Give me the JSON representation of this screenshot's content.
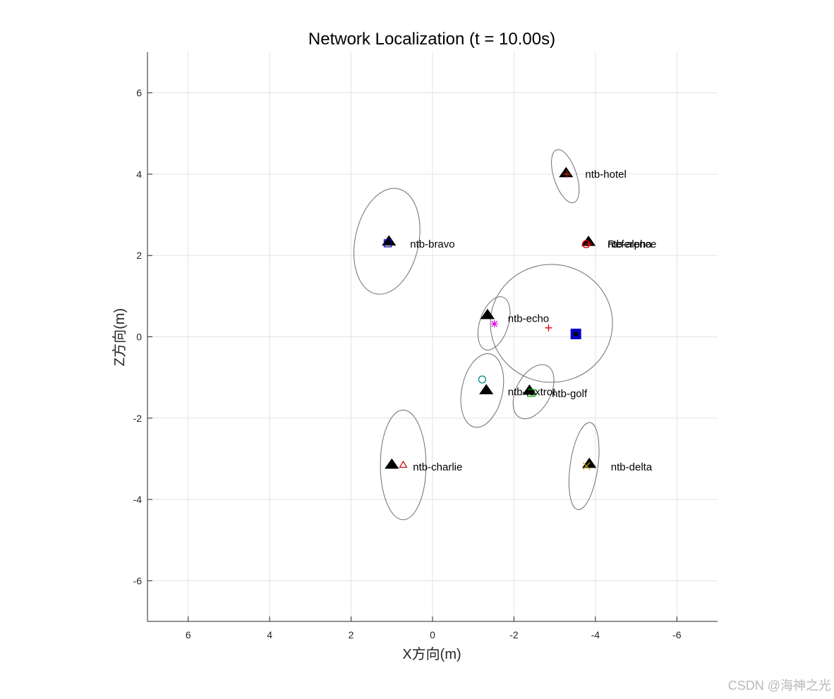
{
  "chart_data": {
    "type": "scatter",
    "title": "Network Localization (t = 10.00s)",
    "xlabel": "X方向(m)",
    "ylabel": "Z方向(m)",
    "xlim": [
      7,
      -7
    ],
    "ylim": [
      -7,
      7
    ],
    "x_reversed": true,
    "grid": true,
    "xticks": [
      6,
      4,
      2,
      0,
      -2,
      -4,
      -6
    ],
    "xtick_labels": [
      "6",
      "4",
      "2",
      "0",
      "-2",
      "-4",
      "-6"
    ],
    "yticks": [
      6,
      4,
      2,
      0,
      -2,
      -4,
      -6
    ],
    "ytick_labels": [
      "6",
      "4",
      "2",
      "0",
      "-2",
      "-4",
      "-6"
    ],
    "anchor": {
      "x": -3.52,
      "y": 0.07,
      "color": "#0000cc"
    },
    "reference_estimate": {
      "x": -2.85,
      "y": 0.22,
      "color": "#dd0000"
    },
    "large_ellipse": {
      "cx": -2.92,
      "cy": 0.33,
      "rx": 1.5,
      "ry": 1.45,
      "angle": 0
    },
    "nodes": [
      {
        "name": "ntb-hotel",
        "tx": -3.28,
        "ty": 4.02,
        "ex": -3.3,
        "ey": 4.0,
        "marker": "+",
        "color": "#cc2200",
        "ecx": -3.26,
        "ecy": 3.95,
        "erx": 0.28,
        "ery": 0.68,
        "eangle": -18,
        "label": "ntb-hotel"
      },
      {
        "name": "ntb-alpha",
        "tx": -3.83,
        "ty": 2.33,
        "ex": -3.77,
        "ey": 2.28,
        "marker": "o",
        "color": "#dd0000",
        "label": "ntb-alpha"
      },
      {
        "name": "Reference",
        "tx": -3.83,
        "ty": 2.33,
        "ex": -3.83,
        "ey": 2.28,
        "marker": "+",
        "color": "#dd0000",
        "label": "Reference"
      },
      {
        "name": "ntb-bravo",
        "tx": 1.07,
        "ty": 2.34,
        "ex": 1.1,
        "ey": 2.3,
        "marker": "s",
        "color": "#0000aa",
        "ecx": 1.12,
        "ecy": 2.35,
        "erx": 0.78,
        "ery": 1.32,
        "eangle": 12,
        "label": "ntb-bravo"
      },
      {
        "name": "ntb-echo",
        "tx": -1.35,
        "ty": 0.53,
        "ex": -1.52,
        "ey": 0.32,
        "marker": "*",
        "color": "#dd00dd",
        "ecx": -1.51,
        "ecy": 0.33,
        "erx": 0.35,
        "ery": 0.68,
        "eangle": 18,
        "label": "ntb-echo"
      },
      {
        "name": "ntb-foxtrot",
        "tx": -1.32,
        "ty": -1.32,
        "ex": -1.22,
        "ey": -1.05,
        "marker": "o",
        "color": "#008888",
        "ecx": -1.22,
        "ecy": -1.32,
        "erx": 0.5,
        "ery": 0.92,
        "eangle": 12,
        "label": "ntb-foxtrot"
      },
      {
        "name": "ntb-golf",
        "tx": -2.38,
        "ty": -1.33,
        "ex": -2.42,
        "ey": -1.38,
        "marker": "s",
        "color": "#00aa00",
        "ecx": -2.48,
        "ecy": -1.35,
        "erx": 0.42,
        "ery": 0.72,
        "eangle": 28,
        "label": "ntb-golf"
      },
      {
        "name": "ntb-charlie",
        "tx": 1.0,
        "ty": -3.15,
        "ex": 0.72,
        "ey": -3.15,
        "marker": "^",
        "color": "#cc0000",
        "ecx": 0.72,
        "ecy": -3.15,
        "erx": 0.56,
        "ery": 1.35,
        "eangle": 0,
        "label": "ntb-charlie"
      },
      {
        "name": "ntb-delta",
        "tx": -3.85,
        "ty": -3.13,
        "ex": -3.78,
        "ey": -3.18,
        "marker": "x",
        "color": "#ccaa00",
        "ecx": -3.72,
        "ecy": -3.18,
        "erx": 0.34,
        "ery": 1.08,
        "eangle": 8,
        "label": "ntb-delta"
      }
    ],
    "label_positions": {
      "ntb-hotel": {
        "x": -3.75,
        "y": 4.0
      },
      "ntb-alpha": {
        "x": -4.3,
        "y": 2.28
      },
      "Reference": {
        "x": -4.3,
        "y": 2.28
      },
      "ntb-bravo": {
        "x": 0.55,
        "y": 2.28
      },
      "ntb-echo": {
        "x": -1.85,
        "y": 0.45
      },
      "ntb-foxtrot": {
        "x": -1.85,
        "y": -1.35
      },
      "ntb-golf": {
        "x": -2.93,
        "y": -1.4
      },
      "ntb-charlie": {
        "x": 0.48,
        "y": -3.2
      },
      "ntb-delta": {
        "x": -4.38,
        "y": -3.2
      }
    }
  },
  "watermark": "CSDN @海神之光"
}
